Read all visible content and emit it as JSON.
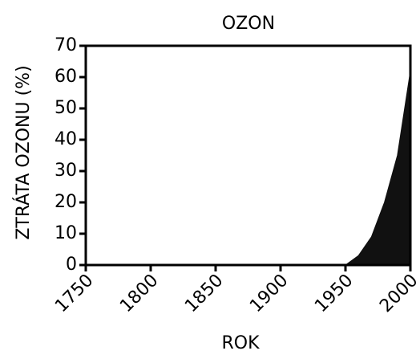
{
  "chart_data": {
    "type": "area",
    "title": "OZON",
    "x_label": "ROK",
    "y_label": "ZTRÁTA OZONU (%)",
    "x": [
      1750,
      1950,
      1960,
      1970,
      1980,
      1990,
      2000
    ],
    "values": [
      0,
      0,
      3,
      9,
      20,
      35,
      62
    ],
    "color": "#111111",
    "xlim": [
      1750,
      2000
    ],
    "xticks": [
      1750,
      1800,
      1850,
      1900,
      1950,
      2000
    ],
    "ylim": [
      0,
      70
    ],
    "yticks": [
      0,
      10,
      20,
      30,
      40,
      50,
      60,
      70
    ]
  }
}
